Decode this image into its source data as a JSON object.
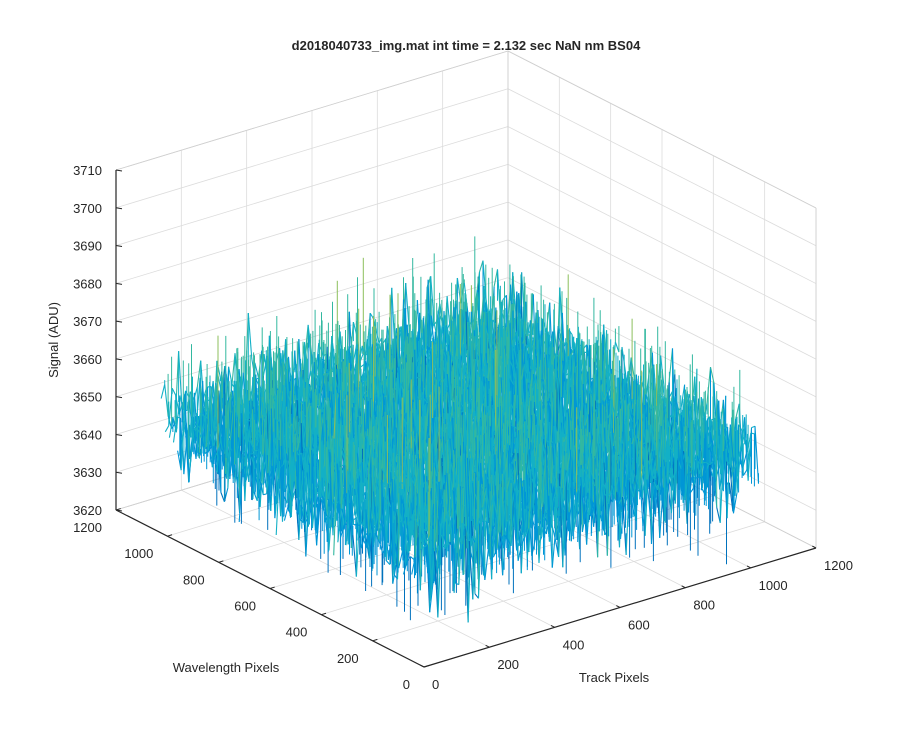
{
  "chart_data": {
    "type": "surface",
    "title": "d2018040733_img.mat int time = 2.132 sec  NaN nm BS04",
    "xlabel": "Track Pixels",
    "ylabel": "Wavelength Pixels",
    "zlabel": "Signal (ADU)",
    "xlim": [
      0,
      1200
    ],
    "ylim": [
      0,
      1200
    ],
    "zlim": [
      3620,
      3710
    ],
    "xticks": [
      "0",
      "200",
      "400",
      "600",
      "800",
      "1000",
      "1200"
    ],
    "yticks": [
      "0",
      "200",
      "400",
      "600",
      "800",
      "1000",
      "1200"
    ],
    "zticks": [
      "3620",
      "3630",
      "3640",
      "3650",
      "3660",
      "3670",
      "3680",
      "3690",
      "3700",
      "3710"
    ],
    "data_extent": {
      "x": [
        0,
        1024
      ],
      "y": [
        0,
        1024
      ]
    },
    "surface_stats": {
      "mean": 3650,
      "min": 3622,
      "max": 3700
    },
    "colormap": [
      "#0072bd",
      "#0096d6",
      "#13b0c6",
      "#33b8a0",
      "#8cbf5c",
      "#d8b93a"
    ],
    "grid": true
  }
}
